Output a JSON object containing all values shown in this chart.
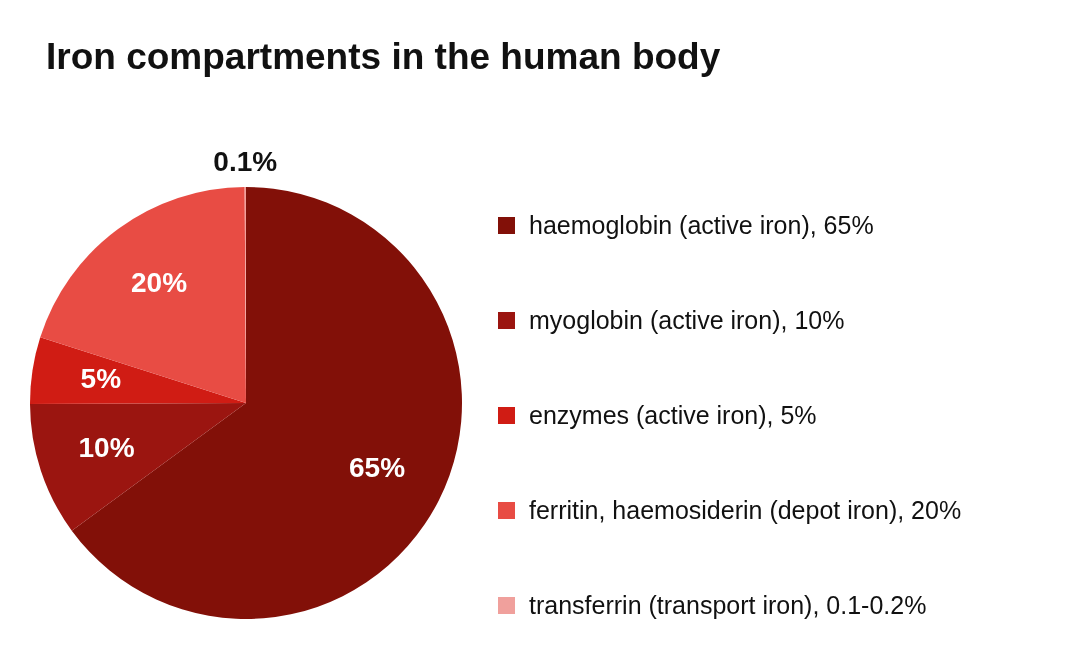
{
  "chart_data": {
    "type": "pie",
    "title": "Iron compartments in the human body",
    "categories": [
      "haemoglobin (active iron), 65%",
      "myoglobin (active iron), 10%",
      "enzymes (active iron), 5%",
      "ferritin, haemosiderin (depot iron), 20%",
      "transferrin (transport iron), 0.1-0.2%"
    ],
    "values": [
      65,
      10,
      5,
      20,
      0.1
    ],
    "colors": [
      "#821008",
      "#9b1510",
      "#d01c14",
      "#e84c44",
      "#f0a09c"
    ],
    "value_labels": [
      "65%",
      "10%",
      "5%",
      "20%",
      "0.1%"
    ],
    "legend": "right"
  }
}
